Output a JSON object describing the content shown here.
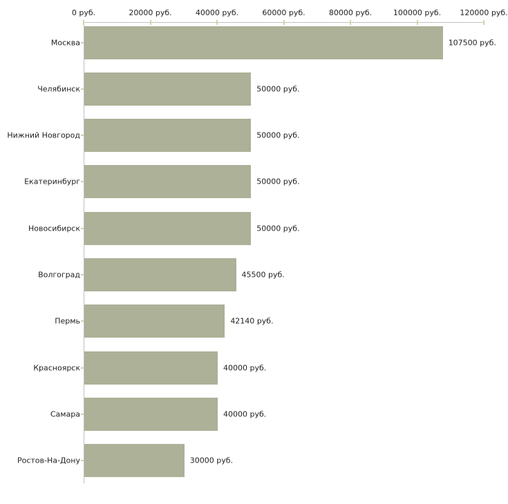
{
  "chart_data": {
    "type": "bar",
    "orientation": "horizontal",
    "title": "",
    "xlabel": "",
    "ylabel": "",
    "categories": [
      "Москва",
      "Челябинск",
      "Нижний Новгород",
      "Екатеринбург",
      "Новосибирск",
      "Волгоград",
      "Пермь",
      "Красноярск",
      "Самара",
      "Ростов-На-Дону"
    ],
    "values": [
      107500,
      50000,
      50000,
      50000,
      50000,
      45500,
      42140,
      40000,
      40000,
      30000
    ],
    "value_labels": [
      "107500 руб.",
      "50000 руб.",
      "50000 руб.",
      "50000 руб.",
      "50000 руб.",
      "45500 руб.",
      "42140 руб.",
      "40000 руб.",
      "40000 руб.",
      "30000 руб."
    ],
    "x_axis": {
      "position": "top",
      "xlim": [
        0,
        120000
      ],
      "ticks": [
        0,
        20000,
        40000,
        60000,
        80000,
        100000,
        120000
      ],
      "tick_labels": [
        "0 руб.",
        "20000 руб.",
        "40000 руб.",
        "60000 руб.",
        "80000 руб.",
        "100000 руб.",
        "120000 руб."
      ]
    },
    "grid": false,
    "legend": false,
    "colors": {
      "bar": "#acb197",
      "axis_line": "#c0c0c0",
      "tick_mark": "#d5d0b0",
      "text": "#222222",
      "background": "#ffffff"
    }
  }
}
